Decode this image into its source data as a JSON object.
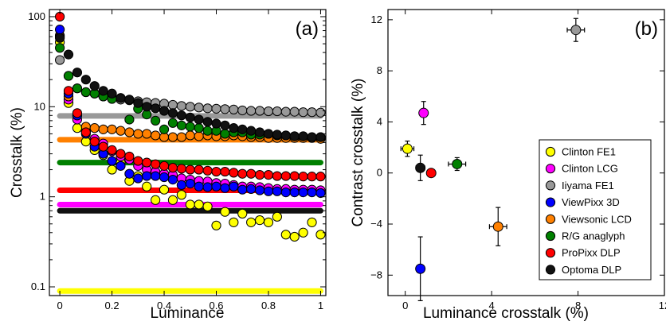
{
  "colors": {
    "Clinton FE1": "#ffff00",
    "Clinton LCG": "#ff00ff",
    "Iiyama FE1": "#999999",
    "ViewPixx 3D": "#0000ff",
    "Viewsonic LCD": "#ff8000",
    "R/G anaglyph": "#008000",
    "ProPixx DLP": "#ff0000",
    "Optoma DLP": "#111111"
  },
  "chart_data": [
    {
      "type": "scatter",
      "panel_label": "(a)",
      "xlabel": "Luminance",
      "ylabel": "Crosstalk (%)",
      "xlim": [
        -0.04,
        1.02
      ],
      "ylim": [
        0.08,
        120
      ],
      "yscale": "log",
      "xticks": [
        0,
        0.2,
        0.4,
        0.6,
        0.8,
        1
      ],
      "xtick_labels": [
        "0",
        "0.2",
        "0.4",
        "0.6",
        "0.8",
        "1"
      ],
      "yticks": [
        0.1,
        1,
        10,
        100
      ],
      "ytick_labels": [
        "0.1",
        "1",
        "10",
        "100"
      ],
      "x": [
        0,
        0.0333,
        0.0667,
        0.1,
        0.1333,
        0.1667,
        0.2,
        0.2333,
        0.2667,
        0.3,
        0.3333,
        0.3667,
        0.4,
        0.4333,
        0.4667,
        0.5,
        0.5333,
        0.5667,
        0.6,
        0.6333,
        0.6667,
        0.7,
        0.7333,
        0.7667,
        0.8,
        0.8333,
        0.8667,
        0.9,
        0.9333,
        0.9667,
        1
      ],
      "series": [
        {
          "name": "Clinton FE1",
          "values": [
            52,
            11,
            5.8,
            4.1,
            3.3,
            2.9,
            2.0,
            2.4,
            1.5,
            1.7,
            1.3,
            0.92,
            1.2,
            0.92,
            1.05,
            0.82,
            0.82,
            0.78,
            0.48,
            0.68,
            0.52,
            0.65,
            0.52,
            0.55,
            0.52,
            0.6,
            0.38,
            0.36,
            0.4,
            0.52,
            0.38
          ],
          "baseline": 0.09
        },
        {
          "name": "Clinton LCG",
          "values": [
            62,
            12,
            7.2,
            5.3,
            4.4,
            3.9,
            3.2,
            2.8,
            2.6,
            2.2,
            2.0,
            1.9,
            1.8,
            1.75,
            1.6,
            1.55,
            1.5,
            1.48,
            1.42,
            1.4,
            1.35,
            1.3,
            1.3,
            1.28,
            1.25,
            1.22,
            1.22,
            1.2,
            1.2,
            1.2,
            1.18
          ],
          "baseline": 0.82
        },
        {
          "name": "Iiyama FE1",
          "values": [
            33,
            22,
            16,
            14.5,
            14,
            13,
            12.5,
            12,
            11.8,
            11.5,
            11.2,
            11,
            10.8,
            10.5,
            10.2,
            10,
            9.8,
            9.6,
            9.5,
            9.4,
            9.3,
            9.1,
            9.0,
            9.0,
            8.9,
            8.9,
            8.8,
            8.8,
            8.7,
            8.7,
            8.6
          ],
          "baseline": 7.9
        },
        {
          "name": "ViewPixx 3D",
          "values": [
            72,
            14,
            8.0,
            5.0,
            3.6,
            3.0,
            2.5,
            2.2,
            1.8,
            1.6,
            1.7,
            1.7,
            1.65,
            1.55,
            1.35,
            1.4,
            1.3,
            1.28,
            1.3,
            1.25,
            1.3,
            1.2,
            1.22,
            1.18,
            1.15,
            1.15,
            1.12,
            1.12,
            1.12,
            1.12,
            1.1
          ],
          "baseline": null
        },
        {
          "name": "Viewsonic LCD",
          "values": [
            60,
            13,
            8.0,
            6.0,
            5.8,
            5.6,
            5.6,
            5.4,
            5.2,
            5.0,
            5.0,
            4.8,
            4.6,
            4.6,
            4.6,
            4.8,
            4.7,
            4.8,
            4.7,
            4.7,
            4.8,
            4.7,
            4.6,
            4.6,
            4.5,
            4.5,
            4.5,
            4.5,
            4.5,
            4.5,
            4.4
          ],
          "baseline": 4.3
        },
        {
          "name": "R/G anaglyph",
          "values": [
            45,
            22,
            16,
            14.5,
            14,
            13,
            12.2,
            12.5,
            7.2,
            9.5,
            8.2,
            7.0,
            5.6,
            6.6,
            6.2,
            6.0,
            5.8,
            5.4,
            5.4,
            5.0,
            5.2,
            5.2,
            4.9,
            4.9,
            5.0,
            4.8,
            4.8,
            4.7,
            4.7,
            4.6,
            4.6
          ],
          "baseline": 2.4
        },
        {
          "name": "ProPixx DLP",
          "values": [
            100,
            15,
            8.5,
            5.2,
            4.1,
            3.6,
            3.3,
            3.0,
            2.8,
            2.5,
            2.4,
            2.3,
            2.2,
            2.1,
            2.05,
            2.0,
            2.0,
            1.95,
            1.9,
            1.9,
            1.85,
            1.8,
            1.8,
            1.75,
            1.75,
            1.7,
            1.7,
            1.7,
            1.68,
            1.68,
            1.68
          ],
          "baseline": 1.18
        },
        {
          "name": "Optoma DLP",
          "values": [
            58,
            38,
            24,
            20,
            17,
            15,
            14,
            12.5,
            12,
            11,
            10,
            9.6,
            9.0,
            8.5,
            8.0,
            7.6,
            7.2,
            6.8,
            6.5,
            6.2,
            5.8,
            5.6,
            5.4,
            5.2,
            5.0,
            4.9,
            4.8,
            4.7,
            4.7,
            4.6,
            4.6
          ],
          "baseline": 0.7
        }
      ]
    },
    {
      "type": "scatter",
      "panel_label": "(b)",
      "xlabel": "Luminance crosstalk (%)",
      "ylabel": "Contrast crosstalk (%)",
      "xlim": [
        -0.8,
        12
      ],
      "ylim": [
        -9.6,
        12.8
      ],
      "xticks": [
        0,
        4,
        8,
        12
      ],
      "xtick_labels": [
        "0",
        "4",
        "8",
        "12"
      ],
      "yticks": [
        -8,
        -4,
        0,
        4,
        8,
        12
      ],
      "ytick_labels": [
        "−8",
        "−4",
        "0",
        "4",
        "8",
        "12"
      ],
      "points": [
        {
          "name": "Clinton FE1",
          "x": 0.1,
          "y": 1.9,
          "xerr": 0.3,
          "yerr": 0.6
        },
        {
          "name": "Clinton LCG",
          "x": 0.85,
          "y": 4.7,
          "xerr": 0,
          "yerr": 0.9
        },
        {
          "name": "Iiyama FE1",
          "x": 7.9,
          "y": 11.2,
          "xerr": 0.4,
          "yerr": 0.9
        },
        {
          "name": "ViewPixx 3D",
          "x": 0.7,
          "y": -7.5,
          "xerr": 0,
          "yerr": 2.5
        },
        {
          "name": "Viewsonic LCD",
          "x": 4.3,
          "y": -4.2,
          "xerr": 0.4,
          "yerr": 1.5
        },
        {
          "name": "R/G anaglyph",
          "x": 2.4,
          "y": 0.7,
          "xerr": 0.4,
          "yerr": 0.5
        },
        {
          "name": "ProPixx DLP",
          "x": 1.2,
          "y": 0.0,
          "xerr": 0,
          "yerr": 0
        },
        {
          "name": "Optoma DLP",
          "x": 0.7,
          "y": 0.4,
          "xerr": 0.2,
          "yerr": 1.0
        }
      ],
      "legend": {
        "placement": "right",
        "entries": [
          "Clinton FE1",
          "Clinton LCG",
          "Iiyama FE1",
          "ViewPixx 3D",
          "Viewsonic LCD",
          "R/G anaglyph",
          "ProPixx DLP",
          "Optoma DLP"
        ]
      }
    }
  ]
}
